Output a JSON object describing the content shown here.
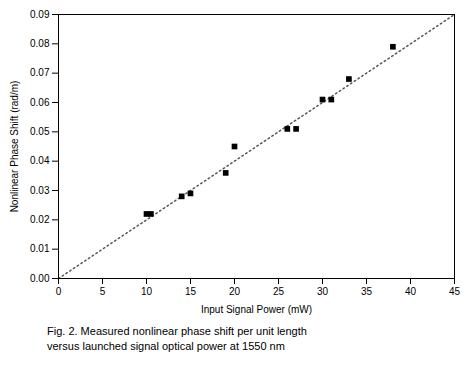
{
  "chart_data": {
    "type": "scatter",
    "xlabel": "Input Signal Power (mW)",
    "ylabel": "Nonlinear Phase Shift (rad/m)",
    "caption": [
      "Fig. 2. Measured nonlinear phase shift per unit length",
      "versus launched signal optical power at 1550 nm"
    ],
    "series": [
      {
        "type": "line",
        "color": "#555555",
        "line_style": "dotted",
        "x": [
          0,
          45
        ],
        "values": [
          0.0,
          0.09
        ]
      },
      {
        "type": "scatter",
        "color": "#000000",
        "marker": "square",
        "x": [
          10,
          10.5,
          14,
          15,
          19,
          20,
          26,
          27,
          30,
          31,
          33,
          38
        ],
        "values": [
          0.022,
          0.022,
          0.028,
          0.029,
          0.036,
          0.045,
          0.051,
          0.051,
          0.061,
          0.061,
          0.068,
          0.079
        ]
      }
    ],
    "xlim": [
      0,
      45
    ],
    "ylim": [
      0,
      0.09
    ],
    "xticks": [
      0,
      5,
      10,
      15,
      20,
      25,
      30,
      35,
      40,
      45
    ],
    "yticks": [
      {
        "value": 0,
        "label": "0.00"
      },
      0.01,
      0.02,
      0.03,
      0.04,
      0.05,
      0.06,
      0.07,
      0.08,
      0.09
    ],
    "grid": false
  }
}
